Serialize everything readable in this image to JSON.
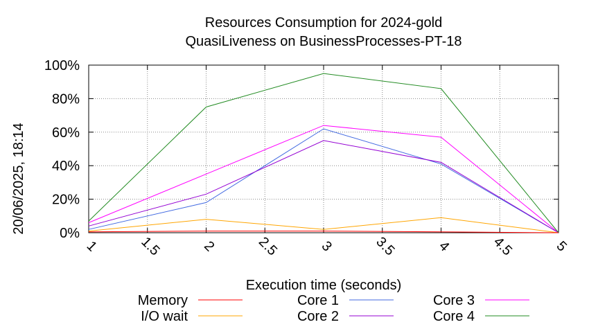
{
  "chart_data": {
    "type": "line",
    "title": [
      "Resources Consumption for 2024-gold",
      "QuasiLiveness on BusinessProcesses-PT-18"
    ],
    "xlabel": "Execution time (seconds)",
    "ylabel": "",
    "side_label": "20/06/2025, 18:14",
    "x": [
      1,
      2,
      3,
      4,
      5
    ],
    "xticks": [
      "1",
      "1.5",
      "2",
      "2.5",
      "3",
      "3.5",
      "4",
      "4.5",
      "5"
    ],
    "xlim": [
      1,
      5
    ],
    "yticks": [
      "0%",
      "20%",
      "40%",
      "60%",
      "80%",
      "100%"
    ],
    "ylim": [
      0,
      100
    ],
    "grid": true,
    "legend_position": "bottom",
    "series": [
      {
        "name": "Memory",
        "color": "#ff0000",
        "values": [
          0.5,
          1,
          1,
          0.5,
          0
        ]
      },
      {
        "name": "I/O wait",
        "color": "#ffa500",
        "values": [
          1,
          8,
          2,
          9,
          0
        ]
      },
      {
        "name": "Core 1",
        "color": "#4169e1",
        "values": [
          2,
          18,
          62,
          41,
          0
        ]
      },
      {
        "name": "Core 2",
        "color": "#9400d3",
        "values": [
          4,
          23,
          55,
          42,
          0
        ]
      },
      {
        "name": "Core 3",
        "color": "#ff00ff",
        "values": [
          6,
          35,
          64,
          57,
          0
        ]
      },
      {
        "name": "Core 4",
        "color": "#228b22",
        "values": [
          7,
          75,
          95,
          86,
          0
        ]
      }
    ]
  }
}
